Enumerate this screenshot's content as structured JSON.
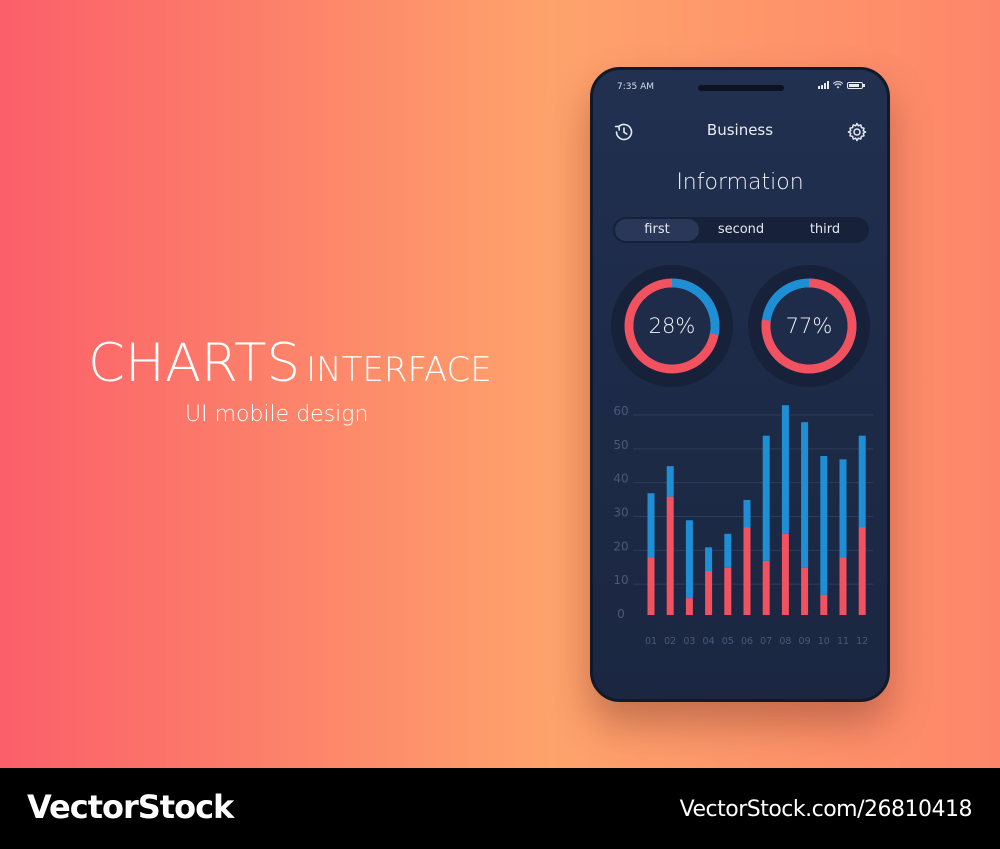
{
  "promo": {
    "title_main": "CHARTS",
    "title_sub": "INTERFACE",
    "subtitle": "UI mobile design"
  },
  "status_bar": {
    "time": "7:35 AM"
  },
  "header": {
    "title": "Business",
    "left_icon": "history-icon",
    "right_icon": "gear-icon"
  },
  "section_title": "Information",
  "tabs": [
    {
      "label": "first",
      "active": true
    },
    {
      "label": "second",
      "active": false
    },
    {
      "label": "third",
      "active": false
    }
  ],
  "donuts": [
    {
      "label": "28%",
      "value": 28,
      "primary_color": "#1e8fd4",
      "secondary_color": "#f25160"
    },
    {
      "label": "77%",
      "value": 77,
      "primary_color": "#f25160",
      "secondary_color": "#1e8fd4"
    }
  ],
  "colors": {
    "red": "#f25160",
    "blue": "#1e8fd4",
    "track": "#17213a"
  },
  "chart_data": {
    "type": "bar",
    "stacked": true,
    "categories": [
      "01",
      "02",
      "03",
      "04",
      "05",
      "06",
      "07",
      "08",
      "09",
      "10",
      "11",
      "12"
    ],
    "series": [
      {
        "color": "#f25160",
        "values": [
          17,
          35,
          5,
          13,
          14,
          26,
          16,
          24,
          14,
          6,
          17,
          26
        ]
      },
      {
        "color": "#1e8fd4",
        "values": [
          19,
          9,
          23,
          7,
          10,
          8,
          37,
          38,
          43,
          41,
          29,
          27
        ]
      }
    ],
    "y_ticks": [
      0,
      10,
      20,
      30,
      40,
      50,
      60
    ],
    "ylim": [
      0,
      60
    ],
    "grid": true
  },
  "watermark": {
    "logo": "VectorStock",
    "id": "VectorStock.com/26810418"
  }
}
